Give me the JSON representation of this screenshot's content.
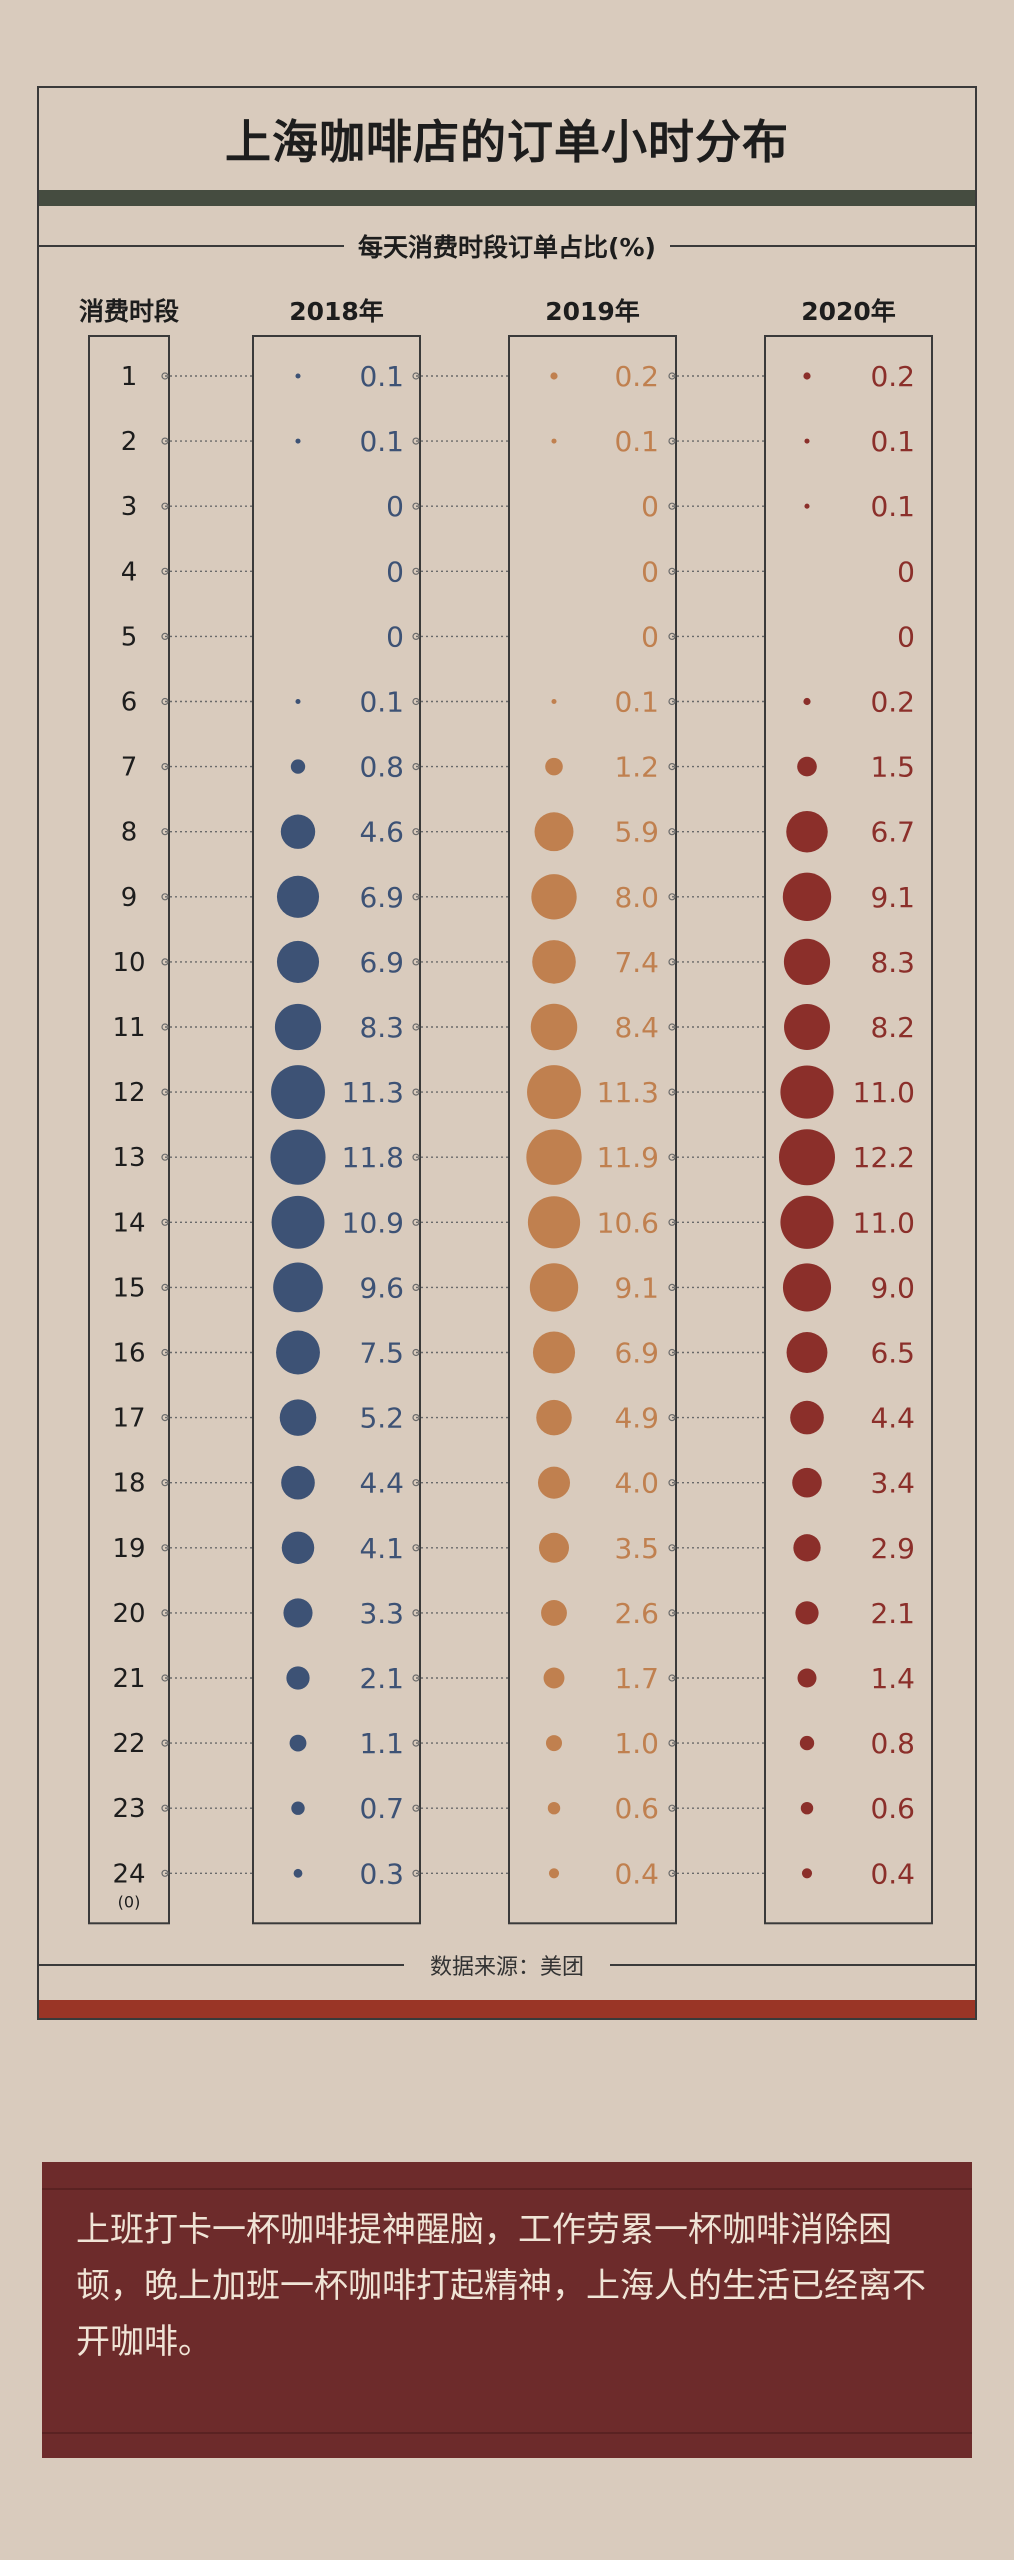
{
  "title": "上海咖啡店的订单小时分布",
  "subtitle": "每天消费时段订单占比(%)",
  "source": "数据来源：美团",
  "caption": "上班打卡一杯咖啡提神醒脑，工作劳累一杯咖啡消除困顿，晚上加班一杯咖啡打起精神，上海人的生活已经离不开咖啡。",
  "colors": {
    "background": "#d9cbbd",
    "title_bar": "#454c40",
    "bottom_bar": "#9a3526",
    "text_box": "#6d2b2b"
  },
  "chart_data": {
    "type": "scatter",
    "title": "每天消费时段订单占比(%)",
    "row_header": "消费时段",
    "hours": [
      "1",
      "2",
      "3",
      "4",
      "5",
      "6",
      "7",
      "8",
      "9",
      "10",
      "11",
      "12",
      "13",
      "14",
      "15",
      "16",
      "17",
      "18",
      "19",
      "20",
      "21",
      "22",
      "23",
      "24"
    ],
    "hour_24_note": "(0)",
    "series": [
      {
        "name": "2018年",
        "color": "#3d5275",
        "values": [
          0.1,
          0.1,
          0,
          0,
          0,
          0.1,
          0.8,
          4.6,
          6.9,
          6.9,
          8.3,
          11.3,
          11.8,
          10.9,
          9.6,
          7.5,
          5.2,
          4.4,
          4.1,
          3.3,
          2.1,
          1.1,
          0.7,
          0.3
        ]
      },
      {
        "name": "2019年",
        "color": "#c0804f",
        "values": [
          0.2,
          0.1,
          0,
          0,
          0,
          0.1,
          1.2,
          5.9,
          8.0,
          7.4,
          8.4,
          11.3,
          11.9,
          10.6,
          9.1,
          6.9,
          4.9,
          4.0,
          3.5,
          2.6,
          1.7,
          1.0,
          0.6,
          0.4
        ]
      },
      {
        "name": "2020年",
        "color": "#8b2f2a",
        "values": [
          0.2,
          0.1,
          0.1,
          0,
          0,
          0.2,
          1.5,
          6.7,
          9.1,
          8.3,
          8.2,
          11.0,
          12.2,
          11.0,
          9.0,
          6.5,
          4.4,
          3.4,
          2.9,
          2.1,
          1.4,
          0.8,
          0.6,
          0.4
        ]
      }
    ],
    "labels": [
      [
        "0.1",
        "0.1",
        "0",
        "0",
        "0",
        "0.1",
        "0.8",
        "4.6",
        "6.9",
        "6.9",
        "8.3",
        "11.3",
        "11.8",
        "10.9",
        "9.6",
        "7.5",
        "5.2",
        "4.4",
        "4.1",
        "3.3",
        "2.1",
        "1.1",
        "0.7",
        "0.3"
      ],
      [
        "0.2",
        "0.1",
        "0",
        "0",
        "0",
        "0.1",
        "1.2",
        "5.9",
        "8.0",
        "7.4",
        "8.4",
        "11.3",
        "11.9",
        "10.6",
        "9.1",
        "6.9",
        "4.9",
        "4.0",
        "3.5",
        "2.6",
        "1.7",
        "1.0",
        "0.6",
        "0.4"
      ],
      [
        "0.2",
        "0.1",
        "0.1",
        "0",
        "0",
        "0.2",
        "1.5",
        "6.7",
        "9.1",
        "8.3",
        "8.2",
        "11.0",
        "12.2",
        "11.0",
        "9.0",
        "6.5",
        "4.4",
        "3.4",
        "2.9",
        "2.1",
        "1.4",
        "0.8",
        "0.6",
        "0.4"
      ]
    ]
  }
}
